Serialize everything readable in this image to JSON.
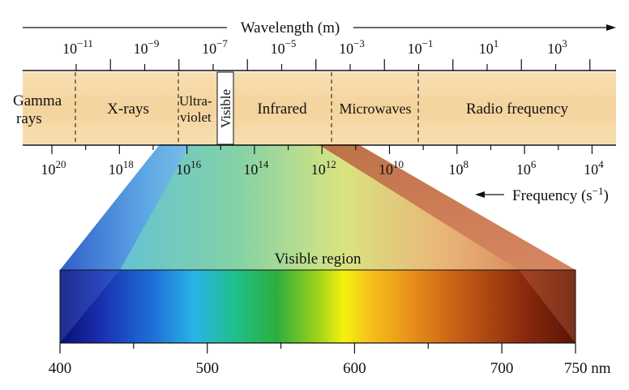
{
  "title_wavelength": "Wavelength (m)",
  "title_frequency": "Frequency (s",
  "title_frequency_exp": "−1",
  "title_frequency_close": ")",
  "wavelength_ticks": [
    {
      "base": "10",
      "exp": "−11"
    },
    {
      "base": "10",
      "exp": "−9"
    },
    {
      "base": "10",
      "exp": "−7"
    },
    {
      "base": "10",
      "exp": "−5"
    },
    {
      "base": "10",
      "exp": "−3"
    },
    {
      "base": "10",
      "exp": "−1"
    },
    {
      "base": "10",
      "exp": "1"
    },
    {
      "base": "10",
      "exp": "3"
    }
  ],
  "frequency_ticks": [
    {
      "base": "10",
      "exp": "20"
    },
    {
      "base": "10",
      "exp": "18"
    },
    {
      "base": "10",
      "exp": "16"
    },
    {
      "base": "10",
      "exp": "14"
    },
    {
      "base": "10",
      "exp": "12"
    },
    {
      "base": "10",
      "exp": "10"
    },
    {
      "base": "10",
      "exp": "8"
    },
    {
      "base": "10",
      "exp": "6"
    },
    {
      "base": "10",
      "exp": "4"
    }
  ],
  "regions": {
    "gamma_line1": "Gamma",
    "gamma_line2": "rays",
    "xrays": "X-rays",
    "uv_line1": "Ultra-",
    "uv_line2": "violet",
    "visible": "Visible",
    "infrared": "Infrared",
    "microwaves": "Microwaves",
    "radio": "Radio frequency"
  },
  "visible_region_label": "Visible region",
  "nm_ticks": [
    "400",
    "500",
    "600",
    "700"
  ],
  "nm_last": "750 nm",
  "colors": {
    "band": "#f5d9a6",
    "band_edge": "#eccb8f",
    "blue_wedge": "#3d6fd6",
    "red_wedge": "#b04a28"
  }
}
